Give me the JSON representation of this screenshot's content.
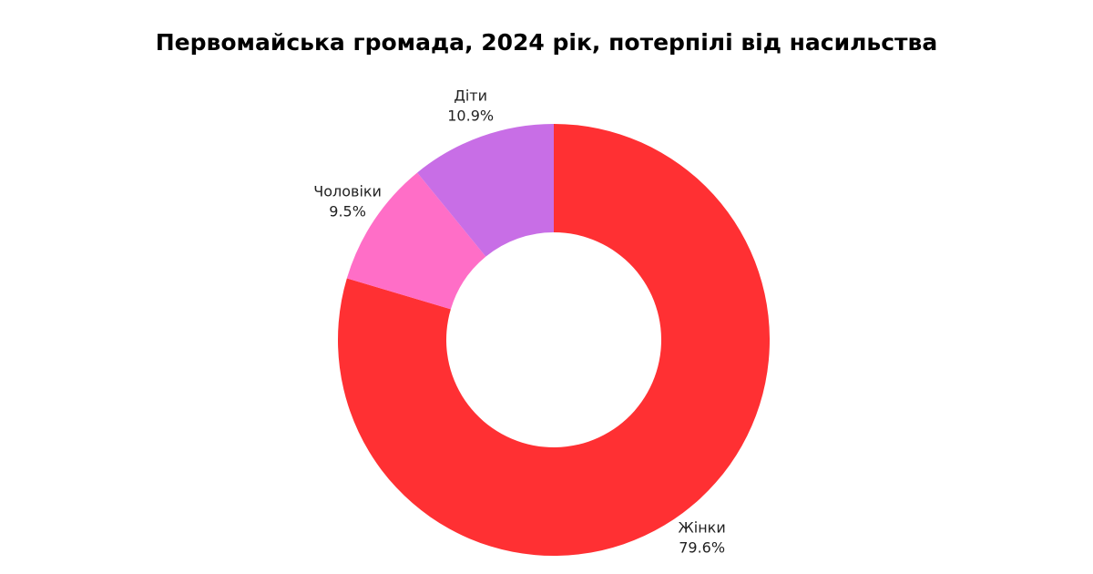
{
  "chart_data": {
    "type": "donut",
    "title": "Первомайська громада, 2024 рік, потерпілі від насильства",
    "categories": [
      "Жінки",
      "Чоловіки",
      "Діти"
    ],
    "values": [
      79.6,
      9.5,
      10.9
    ],
    "value_labels": [
      "79.6%",
      "9.5%",
      "10.9%"
    ],
    "colors": [
      "#ff3033",
      "#ff6ec7",
      "#c86ee6"
    ]
  }
}
